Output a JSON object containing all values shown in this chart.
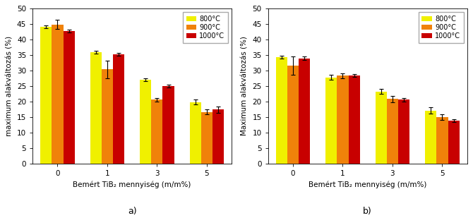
{
  "subplot_a": {
    "title": "a)",
    "ylabel": "maximum alakváltozás (%)",
    "xlabel": "Bemért TiB₂ mennyiség (m/m%)",
    "categories": [
      0,
      1,
      3,
      5
    ],
    "series": {
      "800°C": {
        "color": "#f0f000",
        "values": [
          44.2,
          36.0,
          27.0,
          19.8
        ],
        "errors": [
          0.5,
          0.5,
          0.5,
          0.8
        ]
      },
      "900°C": {
        "color": "#f0820a",
        "values": [
          44.9,
          30.4,
          20.6,
          16.6
        ],
        "errors": [
          1.5,
          2.8,
          0.5,
          0.8
        ]
      },
      "1000°C": {
        "color": "#c80000",
        "values": [
          42.8,
          35.2,
          25.0,
          17.4
        ],
        "errors": [
          0.5,
          0.5,
          0.5,
          1.0
        ]
      }
    },
    "ylim": [
      0,
      50
    ],
    "yticks": [
      0,
      5,
      10,
      15,
      20,
      25,
      30,
      35,
      40,
      45,
      50
    ]
  },
  "subplot_b": {
    "title": "b)",
    "ylabel": "Maximum alakváltozás (%)",
    "xlabel": "Bemért TiB₂ mennyiség (m/m%)",
    "categories": [
      0,
      1,
      3,
      5
    ],
    "series": {
      "800°C": {
        "color": "#f0f000",
        "values": [
          34.4,
          27.8,
          23.2,
          17.1
        ],
        "errors": [
          0.5,
          0.8,
          0.8,
          1.0
        ]
      },
      "900°C": {
        "color": "#f0820a",
        "values": [
          31.6,
          28.4,
          20.8,
          15.0
        ],
        "errors": [
          3.0,
          0.8,
          1.0,
          1.0
        ]
      },
      "1000°C": {
        "color": "#c80000",
        "values": [
          34.0,
          28.4,
          20.6,
          13.8
        ],
        "errors": [
          0.5,
          0.5,
          0.5,
          0.5
        ]
      }
    },
    "ylim": [
      0,
      50
    ],
    "yticks": [
      0,
      5,
      10,
      15,
      20,
      25,
      30,
      35,
      40,
      45,
      50
    ]
  },
  "legend_labels": [
    "800°C",
    "900°C",
    "1000°C"
  ],
  "legend_colors": [
    "#f0f000",
    "#f0820a",
    "#c80000"
  ],
  "bar_width": 0.23,
  "background_color": "#ffffff"
}
